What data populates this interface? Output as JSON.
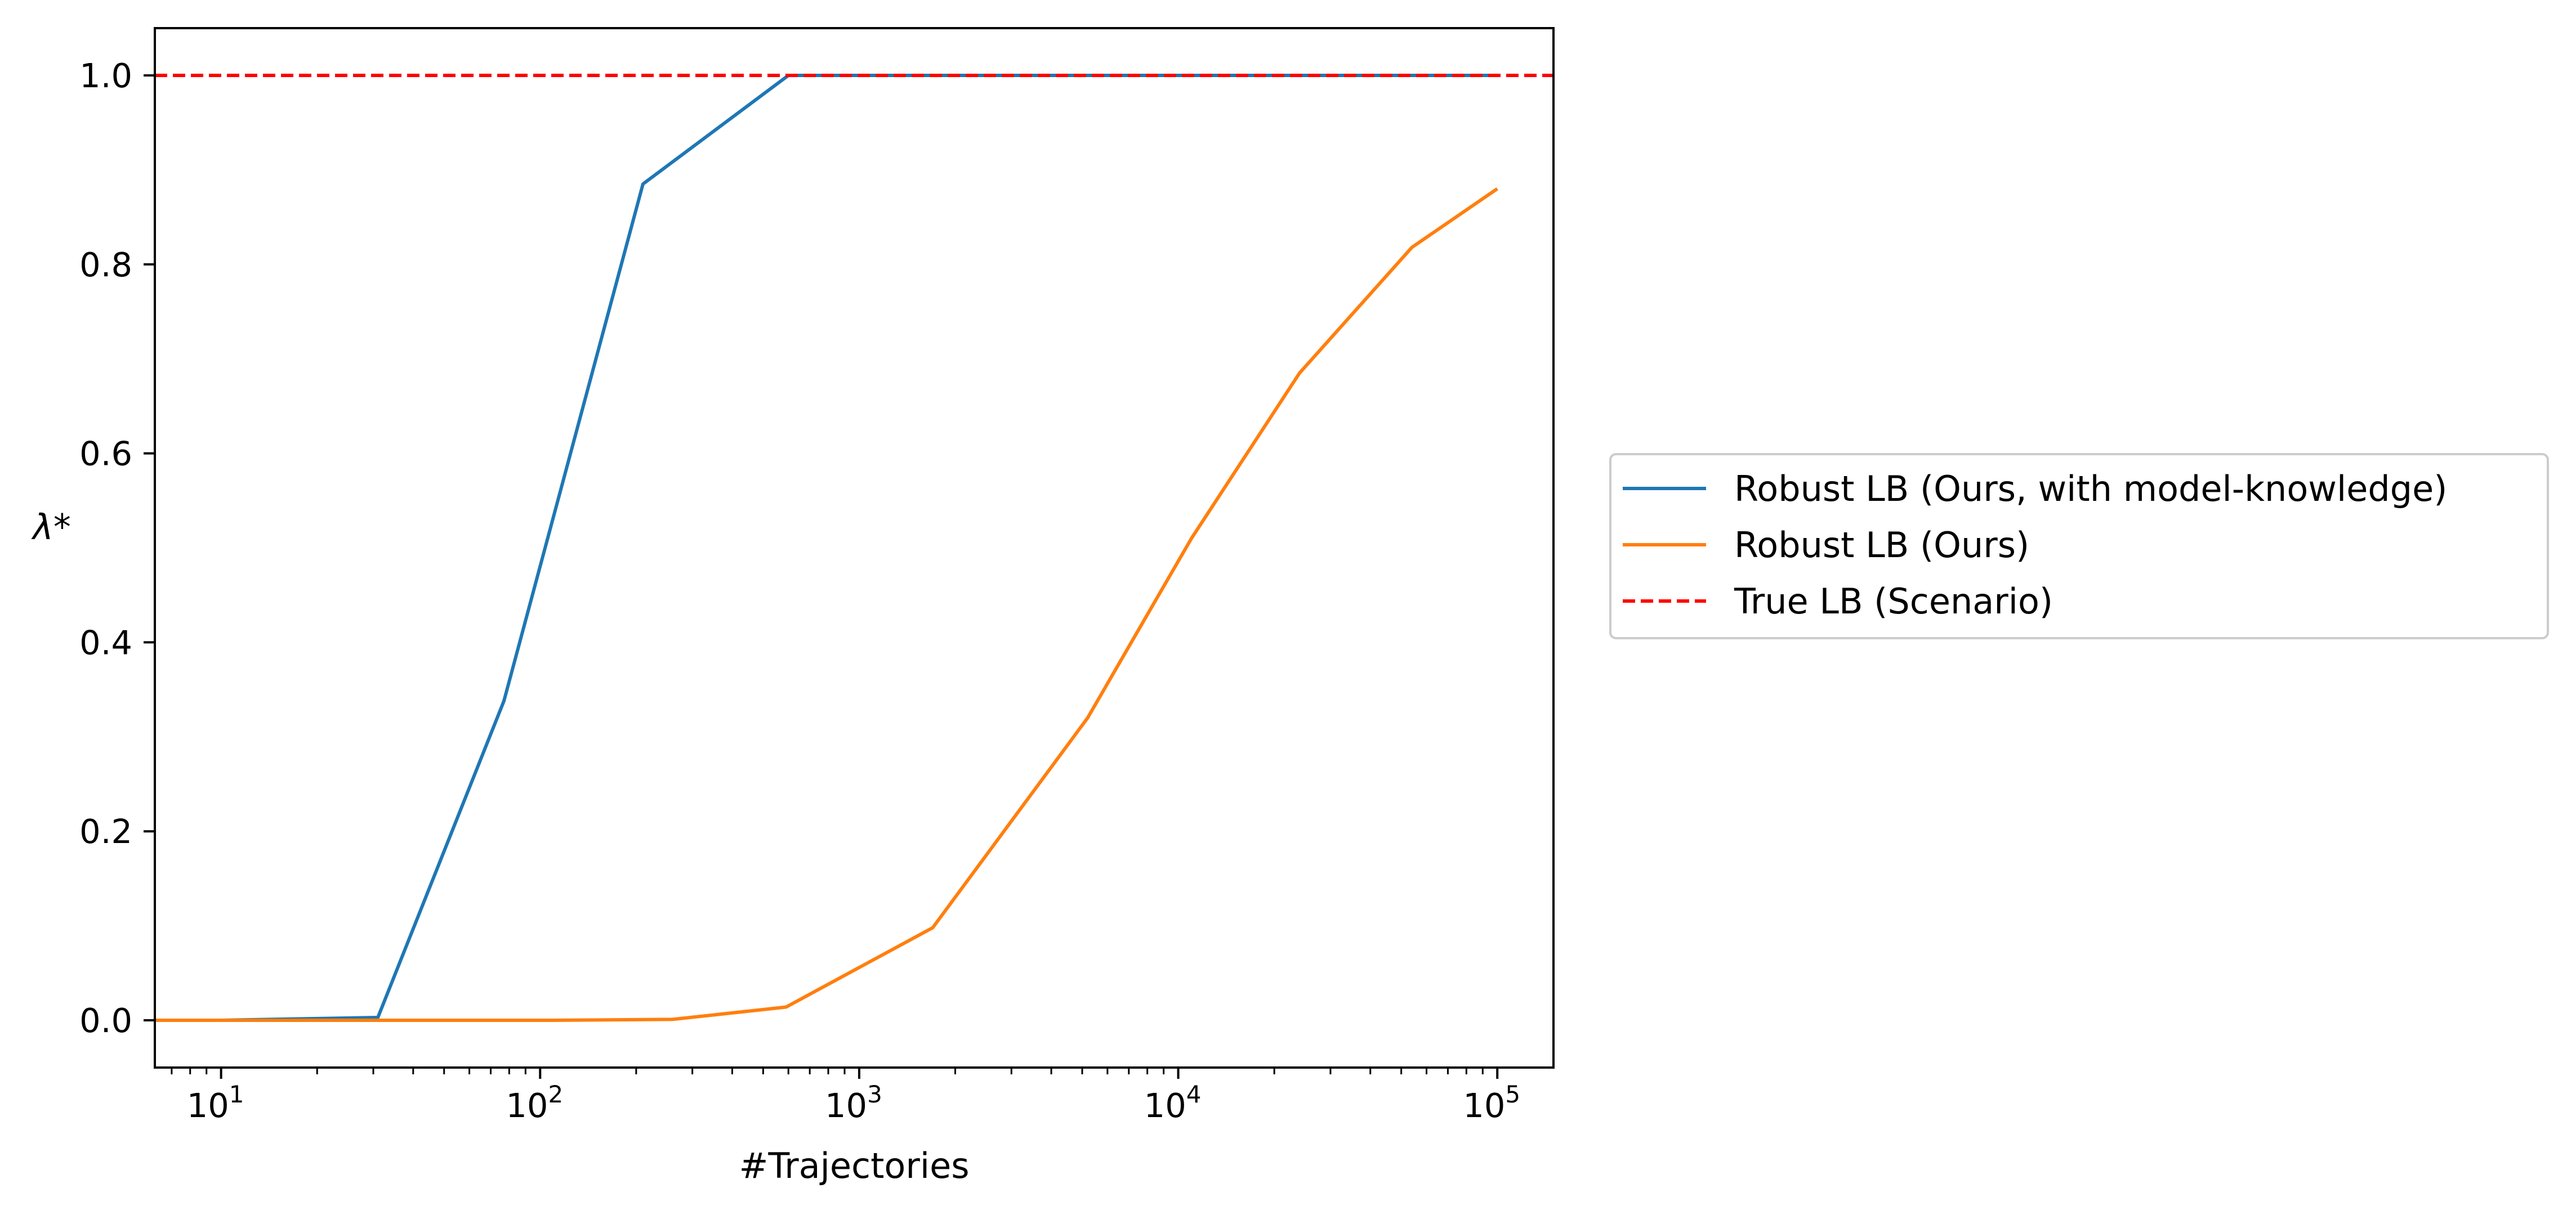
{
  "chart_data": {
    "type": "line",
    "xlabel": "#Trajectories",
    "ylabel": "λ*",
    "xscale": "log",
    "xlim": [
      6.2,
      150000
    ],
    "ylim": [
      -0.05,
      1.05
    ],
    "x_ticks": [
      {
        "value": 10,
        "base": "10",
        "exp": "1"
      },
      {
        "value": 100,
        "base": "10",
        "exp": "2"
      },
      {
        "value": 1000,
        "base": "10",
        "exp": "3"
      },
      {
        "value": 10000,
        "base": "10",
        "exp": "4"
      },
      {
        "value": 100000,
        "base": "10",
        "exp": "5"
      }
    ],
    "y_ticks": [
      {
        "value": 0.0,
        "label": "0.0"
      },
      {
        "value": 0.2,
        "label": "0.2"
      },
      {
        "value": 0.4,
        "label": "0.4"
      },
      {
        "value": 0.6,
        "label": "0.6"
      },
      {
        "value": 0.8,
        "label": "0.8"
      },
      {
        "value": 1.0,
        "label": "1.0"
      }
    ],
    "grid": false,
    "legend_position": "center-right, outside plot",
    "series": [
      {
        "name": "Robust LB (Ours, with model-knowledge)",
        "color": "#1f77b4",
        "style": "solid",
        "x": [
          6.2,
          10,
          31,
          77,
          210,
          600,
          100000
        ],
        "y": [
          0.0,
          0.0,
          0.003,
          0.338,
          0.885,
          1.0,
          1.0
        ]
      },
      {
        "name": "Robust LB (Ours)",
        "color": "#ff7f0e",
        "style": "solid",
        "x": [
          6.2,
          10,
          110,
          260,
          590,
          1700,
          5200,
          11000,
          24000,
          54000,
          100000
        ],
        "y": [
          0.0,
          0.0,
          0.0,
          0.001,
          0.014,
          0.098,
          0.32,
          0.51,
          0.685,
          0.818,
          0.88
        ]
      },
      {
        "name": "True LB (Scenario)",
        "color": "#ff0000",
        "style": "dashed",
        "x": [
          6.2,
          150000
        ],
        "y": [
          1.0,
          1.0
        ]
      }
    ]
  }
}
